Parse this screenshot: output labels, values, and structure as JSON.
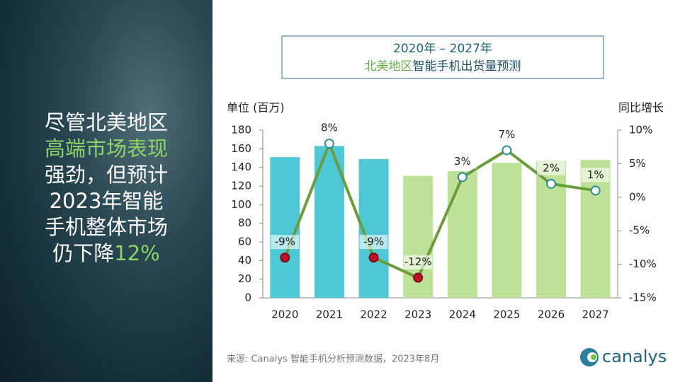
{
  "slide": {
    "headline": [
      [
        "尽管北美地区"
      ],
      [
        "高端市场表现"
      ],
      [
        "强劲，但预计"
      ],
      [
        "2023年智能"
      ],
      [
        "手机整体市场"
      ],
      [
        "仍下降",
        "12%"
      ]
    ],
    "source": "来源: Canalys 智能手机分析预测数据，2023年8月",
    "logo": "canalys"
  },
  "chart_data": {
    "type": "bar_line",
    "title": "2020年 – 2027年",
    "subtitle": [
      "北美地区",
      "智能手机出货量预测"
    ],
    "y_label": "单位 (百万)",
    "y2_label": "同比增长",
    "categories": [
      "2020",
      "2021",
      "2022",
      "2023",
      "2024",
      "2025",
      "2026",
      "2027"
    ],
    "series": [
      {
        "name": "出货量",
        "type": "bar",
        "colors": [
          "#4ec8d4",
          "#4ec8d4",
          "#4ec8d4",
          "#bde197",
          "#bde197",
          "#bde197",
          "#bde197",
          "#bde197"
        ],
        "values": [
          151,
          163,
          149,
          131,
          136,
          145,
          147,
          148
        ]
      },
      {
        "name": "同比增长",
        "type": "line",
        "axis": "y2",
        "color": "#6b9c3c",
        "negative_marker_color": "#c0102a",
        "positive_marker_color": "#ffffff",
        "marker_edge_color": "#2b8a9e",
        "values": [
          -9,
          8,
          -9,
          -12,
          3,
          7,
          2,
          1
        ],
        "value_labels": [
          "-9%",
          "8%",
          "-9%",
          "-12%",
          "3%",
          "7%",
          "2%",
          "1%"
        ]
      }
    ],
    "ylim": [
      0,
      180
    ],
    "yticks": [
      0,
      20,
      40,
      60,
      80,
      100,
      120,
      140,
      160,
      180
    ],
    "y2lim": [
      -15,
      10
    ],
    "y2ticks": [
      {
        "value": -15,
        "label": "-15%"
      },
      {
        "value": -10,
        "label": "-10%"
      },
      {
        "value": -5,
        "label": "-5%"
      },
      {
        "value": 0,
        "label": "0%"
      },
      {
        "value": 5,
        "label": "5%"
      },
      {
        "value": 10,
        "label": "10%"
      }
    ]
  }
}
